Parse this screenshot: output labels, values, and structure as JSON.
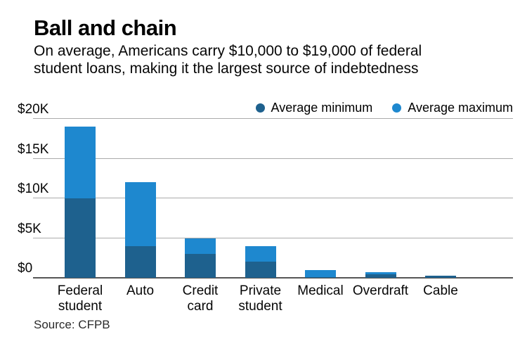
{
  "header": {
    "title": "Ball and chain",
    "subtitle_line1": "On average, Americans carry $10,000 to $19,000 of federal",
    "subtitle_line2": "student loans, making it the largest source of indebtedness"
  },
  "legend": {
    "min_label": "Average minimum",
    "max_label": "Average maximum"
  },
  "source": "Source: CFPB",
  "colors": {
    "min_bar": "#1e618e",
    "max_bar": "#1e88cf",
    "gridline": "#ababab",
    "axis_line": "#565656"
  },
  "chart_data": {
    "type": "bar",
    "title": "Ball and chain",
    "subtitle": "On average, Americans carry $10,000 to $19,000 of federal student loans, making it the largest source of indebtedness",
    "categories": [
      "Federal student",
      "Auto",
      "Credit card",
      "Private student",
      "Medical",
      "Overdraft",
      "Cable"
    ],
    "category_label_lines": [
      [
        "Federal",
        "student"
      ],
      [
        "Auto"
      ],
      [
        "Credit",
        "card"
      ],
      [
        "Private",
        "student"
      ],
      [
        "Medical"
      ],
      [
        "Overdraft"
      ],
      [
        "Cable"
      ]
    ],
    "series": [
      {
        "name": "Average minimum",
        "values": [
          10000,
          4000,
          3000,
          2000,
          100,
          400,
          250
        ]
      },
      {
        "name": "Average maximum",
        "values": [
          19000,
          12000,
          5000,
          4000,
          1000,
          700,
          250
        ]
      }
    ],
    "xlabel": "",
    "ylabel": "",
    "ylim": [
      0,
      20000
    ],
    "yticks": [
      {
        "value": 0,
        "label": "$0"
      },
      {
        "value": 5000,
        "label": "$5K"
      },
      {
        "value": 10000,
        "label": "$10K"
      },
      {
        "value": 15000,
        "label": "$15K"
      },
      {
        "value": 20000,
        "label": "$20K"
      }
    ],
    "grid": true,
    "legend_position": "top-right",
    "source": "CFPB"
  }
}
